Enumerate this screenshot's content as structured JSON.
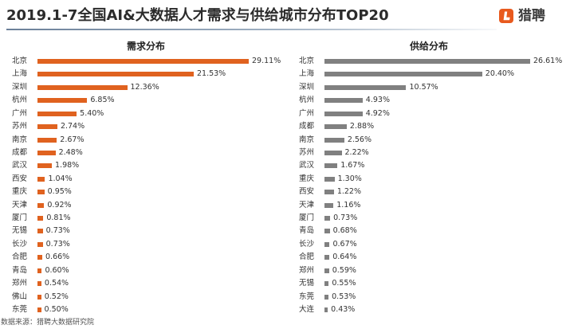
{
  "title": "2019.1-7全国AI&大数据人才需求与供给城市分布TOP20",
  "logo": {
    "text": "猎聘",
    "icon": "liepin-logo-icon",
    "brand_color": "#e85a1e"
  },
  "source": "数据来源：猎聘大数据研究院",
  "chart_data": [
    {
      "type": "bar",
      "orientation": "horizontal",
      "title": "需求分布",
      "color": "#e0621f",
      "grid": false,
      "categories": [
        "北京",
        "上海",
        "深圳",
        "杭州",
        "广州",
        "苏州",
        "南京",
        "成都",
        "武汉",
        "西安",
        "重庆",
        "天津",
        "厦门",
        "无锡",
        "长沙",
        "合肥",
        "青岛",
        "郑州",
        "佛山",
        "东莞"
      ],
      "values": [
        29.11,
        21.53,
        12.36,
        6.85,
        5.4,
        2.74,
        2.67,
        2.48,
        1.98,
        1.04,
        0.95,
        0.92,
        0.81,
        0.73,
        0.73,
        0.66,
        0.6,
        0.54,
        0.52,
        0.5
      ],
      "data_labels": [
        "29.11%",
        "21.53%",
        "12.36%",
        "6.85%",
        "5.40%",
        "2.74%",
        "2.67%",
        "2.48%",
        "1.98%",
        "1.04%",
        "0.95%",
        "0.92%",
        "0.81%",
        "0.73%",
        "0.73%",
        "0.66%",
        "0.60%",
        "0.54%",
        "0.52%",
        "0.50%"
      ]
    },
    {
      "type": "bar",
      "orientation": "horizontal",
      "title": "供给分布",
      "color": "#808080",
      "grid": false,
      "categories": [
        "北京",
        "上海",
        "深圳",
        "杭州",
        "广州",
        "成都",
        "南京",
        "苏州",
        "武汉",
        "重庆",
        "西安",
        "天津",
        "厦门",
        "青岛",
        "长沙",
        "合肥",
        "郑州",
        "无锡",
        "东莞",
        "大连"
      ],
      "values": [
        26.61,
        20.4,
        10.57,
        4.93,
        4.92,
        2.88,
        2.56,
        2.22,
        1.67,
        1.3,
        1.22,
        1.16,
        0.73,
        0.68,
        0.67,
        0.64,
        0.59,
        0.55,
        0.53,
        0.43
      ],
      "data_labels": [
        "26.61%",
        "20.40%",
        "10.57%",
        "4.93%",
        "4.92%",
        "2.88%",
        "2.56%",
        "2.22%",
        "1.67%",
        "1.30%",
        "1.22%",
        "1.16%",
        "0.73%",
        "0.68%",
        "0.67%",
        "0.64%",
        "0.59%",
        "0.55%",
        "0.53%",
        "0.43%"
      ]
    }
  ]
}
